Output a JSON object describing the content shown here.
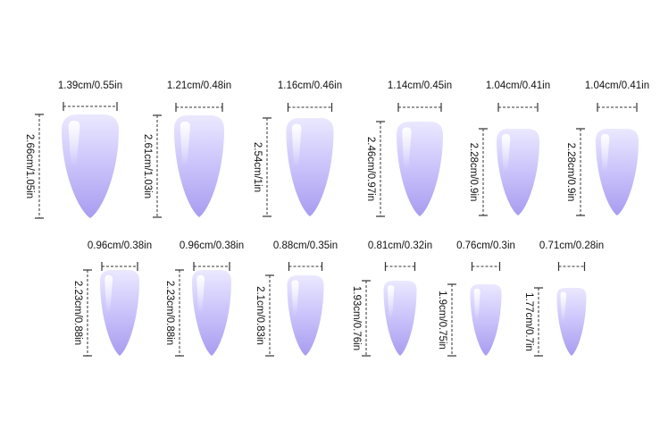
{
  "nails": [
    {
      "width": "1.39cm/0.55in",
      "length": "2.66cm/1.05in"
    },
    {
      "width": "1.21cm/0.48in",
      "length": "2.61cm/1.03in"
    },
    {
      "width": "1.16cm/0.46in",
      "length": "2.54cm/1in"
    },
    {
      "width": "1.14cm/0.45in",
      "length": "2.46cm/0.97in"
    },
    {
      "width": "1.04cm/0.41in",
      "length": "2.28cm/0.9in"
    },
    {
      "width": "1.04cm/0.41in",
      "length": "2.28cm/0.9in"
    },
    {
      "width": "0.96cm/0.38in",
      "length": "2.23cm/0.88in"
    },
    {
      "width": "0.96cm/0.38in",
      "length": "2.23cm/0.88in"
    },
    {
      "width": "0.88cm/0.35in",
      "length": "2.1cm/0.83in"
    },
    {
      "width": "0.81cm/0.32in",
      "length": "1.93cm/0.76in"
    },
    {
      "width": "0.76cm/0.3in",
      "length": "1.9cm/0.75in"
    },
    {
      "width": "0.71cm/0.28in",
      "length": "1.77cm/0.7in"
    }
  ],
  "colors": {
    "nail_top": "#ebe8ff",
    "nail_bottom": "#a89cf0",
    "highlight": "#ffffff"
  }
}
